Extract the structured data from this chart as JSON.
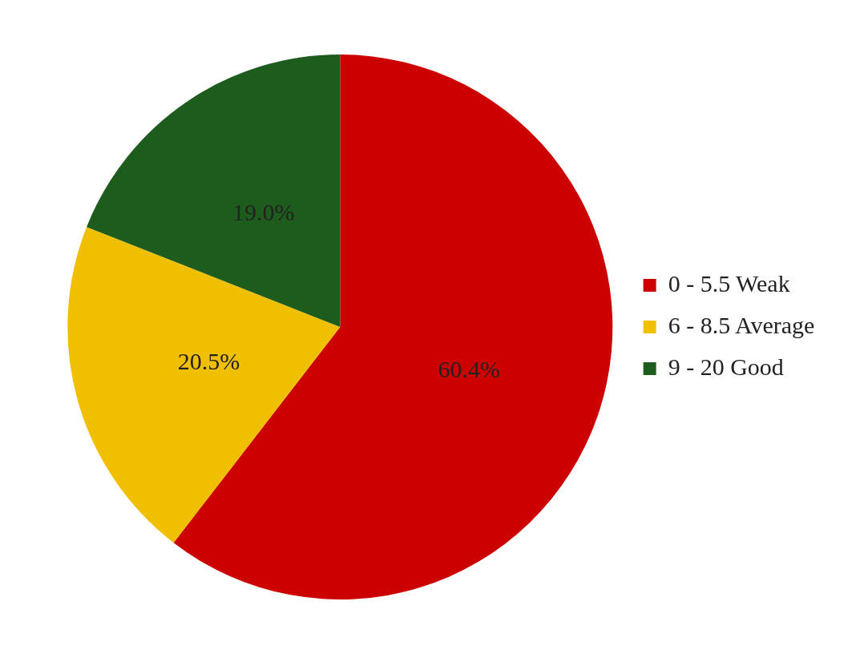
{
  "chart_data": {
    "type": "pie",
    "categories": [
      "0 - 5.5 Weak",
      "6 - 8.5 Average",
      "9 - 20 Good"
    ],
    "values": [
      60.4,
      20.5,
      19.0
    ],
    "colors": [
      "#cc0000",
      "#f0c000",
      "#1e5c1e"
    ],
    "value_labels": [
      "60.4%",
      "20.5%",
      "19.0%"
    ],
    "legend": "right"
  }
}
